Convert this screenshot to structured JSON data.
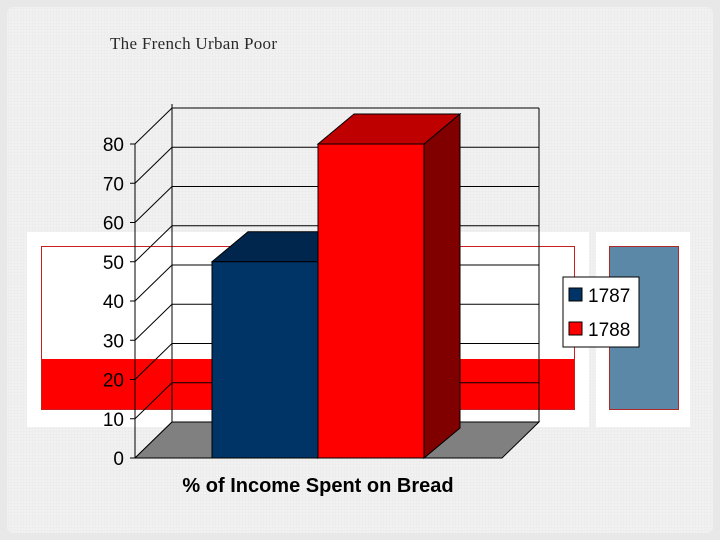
{
  "slide": {
    "title": "The French Urban Poor"
  },
  "colors": {
    "series_1787": "#003366",
    "series_1788": "#ff0000",
    "band_red": "#ff0000",
    "band_blue": "#5b88a6",
    "floor": "#808080"
  },
  "chart_data": {
    "type": "bar",
    "style": "3d-column",
    "categories": [
      "% of Income Spent on Bread"
    ],
    "series": [
      {
        "name": "1787",
        "values": [
          50
        ]
      },
      {
        "name": "1788",
        "values": [
          80
        ]
      }
    ],
    "xlabel": "% of Income Spent on Bread",
    "ylabel": "",
    "ylim": [
      0,
      80
    ],
    "yticks": [
      "0",
      "10",
      "20",
      "30",
      "40",
      "50",
      "60",
      "70",
      "80"
    ],
    "grid": true,
    "legend": "right"
  }
}
